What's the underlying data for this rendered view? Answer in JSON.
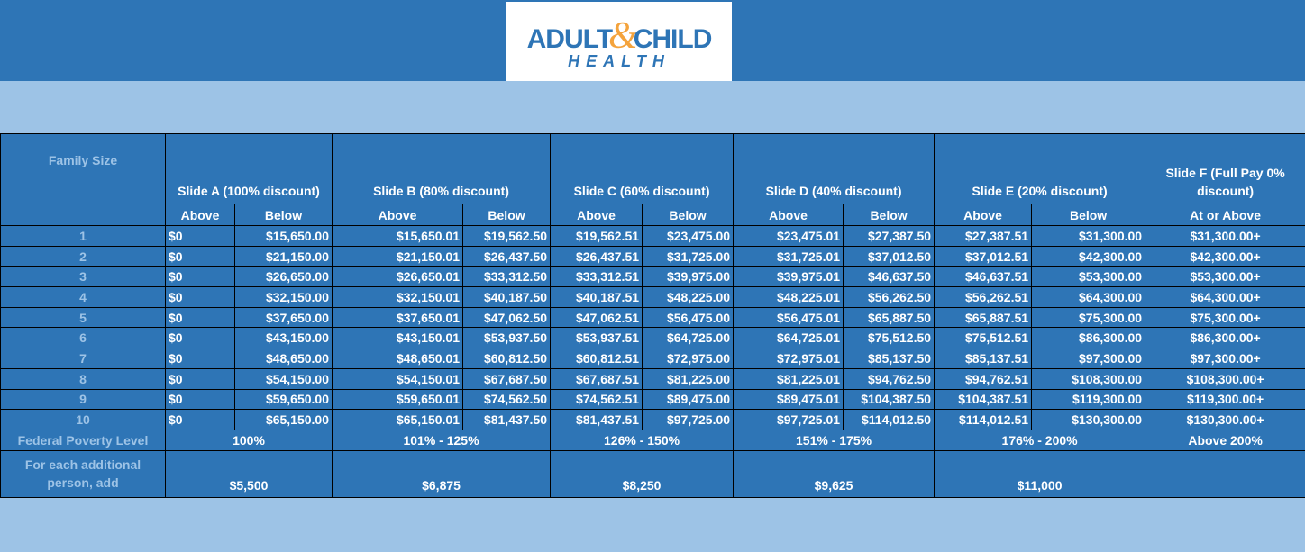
{
  "logo": {
    "word1": "ADULT",
    "amp": "&",
    "word2": "CHILD",
    "word3": "HEALTH"
  },
  "table": {
    "header": [
      "Family Size",
      "Slide A (100% discount)",
      "Slide B (80% discount)",
      "Slide C (60% discount)",
      "Slide D (40% discount)",
      "Slide E (20% discount)",
      "Slide F (Full Pay 0% discount)"
    ],
    "subheader": [
      "Above",
      "Below",
      "Above",
      "Below",
      "Above",
      "Below",
      "Above",
      "Below",
      "Above",
      "Below",
      "At or Above"
    ],
    "rows": [
      [
        "1",
        "$0",
        "$15,650.00",
        "$15,650.01",
        "$19,562.50",
        "$19,562.51",
        "$23,475.00",
        "$23,475.01",
        "$27,387.50",
        "$27,387.51",
        "$31,300.00",
        "$31,300.00+"
      ],
      [
        "2",
        "$0",
        "$21,150.00",
        "$21,150.01",
        "$26,437.50",
        "$26,437.51",
        "$31,725.00",
        "$31,725.01",
        "$37,012.50",
        "$37,012.51",
        "$42,300.00",
        "$42,300.00+"
      ],
      [
        "3",
        "$0",
        "$26,650.00",
        "$26,650.01",
        "$33,312.50",
        "$33,312.51",
        "$39,975.00",
        "$39,975.01",
        "$46,637.50",
        "$46,637.51",
        "$53,300.00",
        "$53,300.00+"
      ],
      [
        "4",
        "$0",
        "$32,150.00",
        "$32,150.01",
        "$40,187.50",
        "$40,187.51",
        "$48,225.00",
        "$48,225.01",
        "$56,262.50",
        "$56,262.51",
        "$64,300.00",
        "$64,300.00+"
      ],
      [
        "5",
        "$0",
        "$37,650.00",
        "$37,650.01",
        "$47,062.50",
        "$47,062.51",
        "$56,475.00",
        "$56,475.01",
        "$65,887.50",
        "$65,887.51",
        "$75,300.00",
        "$75,300.00+"
      ],
      [
        "6",
        "$0",
        "$43,150.00",
        "$43,150.01",
        "$53,937.50",
        "$53,937.51",
        "$64,725.00",
        "$64,725.01",
        "$75,512.50",
        "$75,512.51",
        "$86,300.00",
        "$86,300.00+"
      ],
      [
        "7",
        "$0",
        "$48,650.00",
        "$48,650.01",
        "$60,812.50",
        "$60,812.51",
        "$72,975.00",
        "$72,975.01",
        "$85,137.50",
        "$85,137.51",
        "$97,300.00",
        "$97,300.00+"
      ],
      [
        "8",
        "$0",
        "$54,150.00",
        "$54,150.01",
        "$67,687.50",
        "$67,687.51",
        "$81,225.00",
        "$81,225.01",
        "$94,762.50",
        "$94,762.51",
        "$108,300.00",
        "$108,300.00+"
      ],
      [
        "9",
        "$0",
        "$59,650.00",
        "$59,650.01",
        "$74,562.50",
        "$74,562.51",
        "$89,475.00",
        "$89,475.01",
        "$104,387.50",
        "$104,387.51",
        "$119,300.00",
        "$119,300.00+"
      ],
      [
        "10",
        "$0",
        "$65,150.00",
        "$65,150.01",
        "$81,437.50",
        "$81,437.51",
        "$97,725.00",
        "$97,725.01",
        "$114,012.50",
        "$114,012.51",
        "$130,300.00",
        "$130,300.00+"
      ]
    ],
    "fpl": {
      "label": "Federal Poverty Level",
      "values": [
        "100%",
        "101% - 125%",
        "126% - 150%",
        "151% - 175%",
        "176% - 200%",
        "Above 200%"
      ]
    },
    "additional": {
      "label": "For each additional person, add",
      "values": [
        "$5,500",
        "$6,875",
        "$8,250",
        "$9,625",
        "$11,000"
      ]
    }
  }
}
